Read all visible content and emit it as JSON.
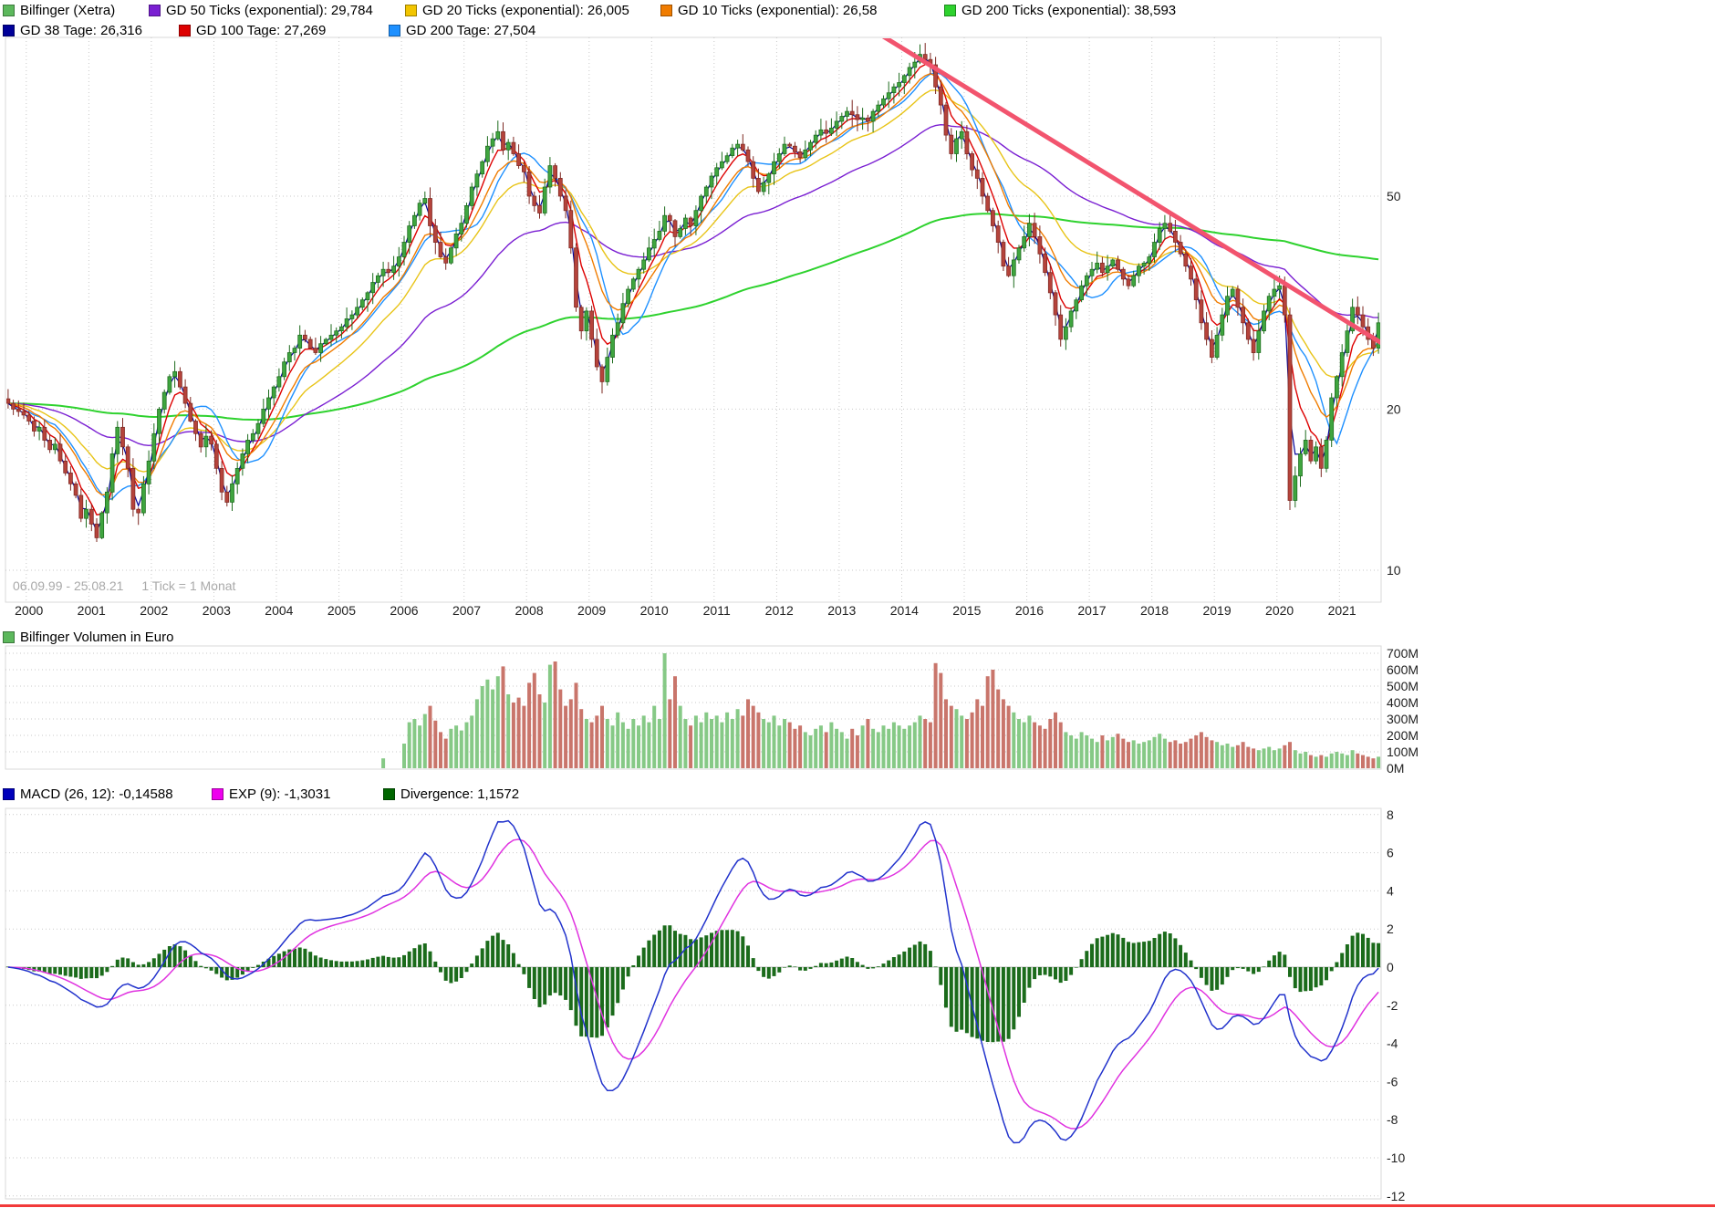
{
  "legend_main": {
    "row1": [
      {
        "id": "bilfinger",
        "label": "Bilfinger (Xetra)",
        "color": "#5cb85c"
      },
      {
        "id": "gd-50-ticks",
        "label": "GD 50 Ticks (exponential): 29,784",
        "color": "#7a1fd2"
      },
      {
        "id": "gd-20-ticks",
        "label": "GD 20 Ticks (exponential): 26,005",
        "color": "#f2c500"
      },
      {
        "id": "gd-10-ticks",
        "label": "GD 10 Ticks (exponential): 26,58",
        "color": "#f07c00"
      },
      {
        "id": "gd-200-ticks",
        "label": "GD 200 Ticks (exponential): 38,593",
        "color": "#2ed22e"
      }
    ],
    "row2": [
      {
        "id": "gd-38-tage",
        "label": "GD 38 Tage: 26,316",
        "color": "#000099"
      },
      {
        "id": "gd-100-tage",
        "label": "GD 100 Tage: 27,269",
        "color": "#dd0000"
      },
      {
        "id": "gd-200-tage",
        "label": "GD 200 Tage: 27,504",
        "color": "#1e90ff"
      }
    ]
  },
  "footer": {
    "date_range": "06.09.99 - 25.08.21",
    "tick_info": "1 Tick = 1 Monat"
  },
  "x_axis": {
    "years": [
      "2000",
      "2001",
      "2002",
      "2003",
      "2004",
      "2005",
      "2006",
      "2007",
      "2008",
      "2009",
      "2010",
      "2011",
      "2012",
      "2013",
      "2014",
      "2015",
      "2016",
      "2017",
      "2018",
      "2019",
      "2020",
      "2021"
    ]
  },
  "volume_section": {
    "legend": {
      "id": "volume",
      "label": "Bilfinger Volumen in Euro",
      "color": "#5cb85c"
    },
    "ticks": [
      "700M",
      "600M",
      "500M",
      "400M",
      "300M",
      "200M",
      "100M",
      "0M"
    ]
  },
  "macd_section": {
    "legend": [
      {
        "id": "macd",
        "label": "MACD (26, 12): -0,14588",
        "color": "#0000bb"
      },
      {
        "id": "exp9",
        "label": "EXP (9): -1,3031",
        "color": "#ee00ee"
      },
      {
        "id": "divergence",
        "label": "Divergence: 1,1572",
        "color": "#006600"
      }
    ],
    "ticks": [
      "8",
      "6",
      "4",
      "2",
      "0",
      "-2",
      "-4",
      "-6",
      "-8",
      "-10",
      "-12"
    ]
  },
  "colors": {
    "candle_up": "#3fa53f",
    "candle_up_border": "#1d6b1d",
    "candle_down": "#b5433b",
    "candle_down_border": "#7d2822",
    "vol_up": "#86c986",
    "vol_down": "#c9756b",
    "grid": "#c9c9c9",
    "axis_text": "#222222",
    "border": "#d9d9d9",
    "trendline": "#f2546e",
    "macd_line": "#2233cc",
    "signal_line": "#e033e0",
    "divergence_bar": "#1b6b1b",
    "ma_gd50": "#7a1fd2",
    "ma_gd20": "#e8c418",
    "ma_gd10": "#f07c00",
    "ma_gd200t": "#2ed22e",
    "ma_gd38d": "#000099",
    "ma_gd100d": "#dd0000",
    "ma_gd200d": "#1e90ff"
  },
  "chart_data": {
    "type": "candlestick",
    "title": "Bilfinger (Xetra)",
    "x_start": "1999-09",
    "x_end": "2021-08",
    "interval": "1 Monat",
    "y_scale": "log",
    "ylim": [
      8.8,
      100
    ],
    "price_ticks": [
      50,
      20,
      10
    ],
    "monthly_close": [
      20.5,
      20.0,
      19.8,
      19.5,
      19.0,
      18.2,
      18.5,
      17.5,
      16.8,
      17.2,
      16.0,
      15.2,
      14.5,
      13.8,
      12.5,
      13.0,
      12.2,
      11.5,
      12.8,
      14.0,
      16.5,
      18.5,
      17.0,
      15.5,
      13.0,
      12.8,
      14.5,
      16.0,
      18.0,
      20.0,
      21.5,
      23.0,
      23.5,
      22.0,
      20.5,
      19.0,
      18.0,
      17.0,
      17.8,
      17.2,
      15.5,
      14.0,
      13.4,
      14.5,
      15.5,
      16.5,
      17.5,
      18.0,
      18.8,
      20.0,
      21.0,
      22.0,
      23.0,
      24.5,
      25.5,
      26.0,
      27.5,
      27.0,
      26.0,
      25.5,
      26.5,
      27.0,
      27.5,
      28.0,
      28.5,
      29.5,
      30.0,
      31.0,
      32.0,
      33.0,
      34.5,
      35.5,
      36.5,
      36.0,
      37.0,
      38.5,
      41.0,
      44.0,
      46.0,
      48.5,
      49.5,
      44.0,
      41.0,
      38.5,
      37.5,
      40.0,
      42.5,
      44.5,
      48.0,
      52.0,
      55.0,
      58.0,
      62.0,
      64.0,
      66.0,
      61.0,
      63.0,
      60.0,
      57.0,
      55.5,
      50.0,
      48.0,
      46.5,
      52.0,
      57.0,
      54.0,
      50.0,
      47.0,
      40.0,
      31.0,
      28.0,
      30.5,
      27.0,
      24.0,
      22.5,
      25.0,
      27.5,
      29.0,
      31.5,
      33.5,
      35.0,
      36.5,
      38.0,
      40.0,
      41.5,
      43.0,
      46.0,
      45.0,
      42.0,
      43.5,
      45.5,
      44.0,
      47.0,
      50.0,
      52.0,
      54.5,
      56.5,
      58.0,
      59.5,
      61.5,
      62.5,
      61.0,
      58.0,
      54.0,
      51.0,
      53.0,
      55.0,
      58.0,
      60.0,
      62.5,
      62.0,
      60.5,
      59.0,
      61.0,
      63.0,
      65.0,
      66.5,
      65.5,
      67.0,
      69.0,
      70.5,
      72.0,
      71.0,
      69.5,
      70.0,
      69.0,
      72.0,
      74.0,
      76.0,
      78.0,
      80.0,
      81.5,
      84.0,
      87.0,
      89.0,
      92.0,
      90.0,
      88.0,
      80.0,
      74.0,
      65.0,
      60.0,
      64.0,
      66.0,
      60.0,
      56.0,
      54.0,
      50.0,
      47.0,
      44.0,
      41.0,
      37.0,
      35.5,
      38.0,
      40.0,
      42.0,
      44.5,
      42.0,
      39.0,
      36.0,
      33.0,
      30.0,
      27.0,
      28.5,
      30.5,
      32.0,
      34.0,
      35.5,
      36.5,
      37.5,
      36.0,
      37.0,
      38.0,
      36.5,
      35.0,
      34.0,
      35.5,
      37.0,
      37.5,
      38.5,
      41.0,
      43.5,
      44.5,
      43.0,
      41.0,
      39.0,
      37.0,
      35.0,
      32.0,
      29.0,
      27.0,
      25.0,
      27.5,
      30.0,
      32.5,
      33.5,
      31.0,
      29.0,
      27.0,
      25.5,
      28.0,
      30.5,
      32.5,
      33.5,
      34.0,
      30.0,
      13.5,
      15.0,
      16.5,
      17.5,
      16.0,
      17.0,
      15.5,
      17.5,
      21.0,
      23.0,
      25.5,
      28.0,
      31.0,
      30.0,
      28.5,
      27.0,
      26.0,
      29.0
    ],
    "volumes_m": {
      "unit": "EUR millions",
      "start_index": 72,
      "values": [
        60,
        0,
        0,
        0,
        150,
        280,
        300,
        260,
        330,
        380,
        290,
        220,
        180,
        240,
        260,
        230,
        280,
        320,
        420,
        500,
        540,
        480,
        560,
        620,
        450,
        400,
        430,
        380,
        520,
        580,
        450,
        400,
        630,
        650,
        480,
        380,
        420,
        520,
        360,
        300,
        280,
        320,
        380,
        300,
        260,
        340,
        280,
        240,
        300,
        260,
        320,
        280,
        380,
        300,
        700,
        420,
        560,
        380,
        300,
        260,
        320,
        280,
        340,
        300,
        320,
        280,
        340,
        300,
        360,
        320,
        420,
        380,
        340,
        300,
        280,
        320,
        260,
        300,
        280,
        240,
        260,
        220,
        200,
        240,
        260,
        220,
        280,
        240,
        220,
        180,
        240,
        200,
        260,
        300,
        240,
        220,
        260,
        240,
        280,
        260,
        240,
        260,
        280,
        320,
        300,
        280,
        640,
        580,
        420,
        380,
        360,
        320,
        300,
        340,
        420,
        380,
        560,
        600,
        480,
        420,
        380,
        340,
        300,
        280,
        320,
        280,
        260,
        240,
        300,
        340,
        280,
        220,
        200,
        180,
        220,
        200,
        180,
        160,
        200,
        170,
        190,
        210,
        180,
        160,
        170,
        150,
        160,
        170,
        190,
        210,
        180,
        160,
        170,
        150,
        160,
        180,
        200,
        220,
        190,
        170,
        160,
        140,
        150,
        130,
        140,
        160,
        130,
        120,
        110,
        120,
        130,
        110,
        120,
        140,
        160,
        110,
        90,
        100,
        80,
        70,
        80,
        70,
        90,
        100,
        90,
        80,
        110,
        90,
        80,
        70,
        60,
        70
      ]
    },
    "moving_averages": [
      {
        "id": "gd200ticks",
        "period": 200,
        "method": "ema",
        "color_key": "ma_gd200t",
        "width": 2
      },
      {
        "id": "gd50ticks",
        "period": 50,
        "method": "ema",
        "color_key": "ma_gd50",
        "width": 1.4
      },
      {
        "id": "gd20ticks",
        "period": 20,
        "method": "ema",
        "color_key": "ma_gd20",
        "width": 1.4
      },
      {
        "id": "gd200tage",
        "period": 10,
        "method": "sma",
        "color_key": "ma_gd200d",
        "width": 1.4
      },
      {
        "id": "gd100tage",
        "period": 5,
        "method": "ema",
        "color_key": "ma_gd100d",
        "width": 1.4
      },
      {
        "id": "gd10ticks",
        "period": 10,
        "method": "ema",
        "color_key": "ma_gd10",
        "width": 1.4
      },
      {
        "id": "gd38tage",
        "period": 2,
        "method": "ema",
        "color_key": "ma_gd38d",
        "width": 1.2
      }
    ],
    "trendline": {
      "start_month_index": 164,
      "start_price": 105,
      "end_month_index": 266,
      "end_price": 25.7
    },
    "macd": {
      "fast": 12,
      "slow": 26,
      "signal_period": 9,
      "ylim": [
        -12,
        8
      ]
    }
  }
}
